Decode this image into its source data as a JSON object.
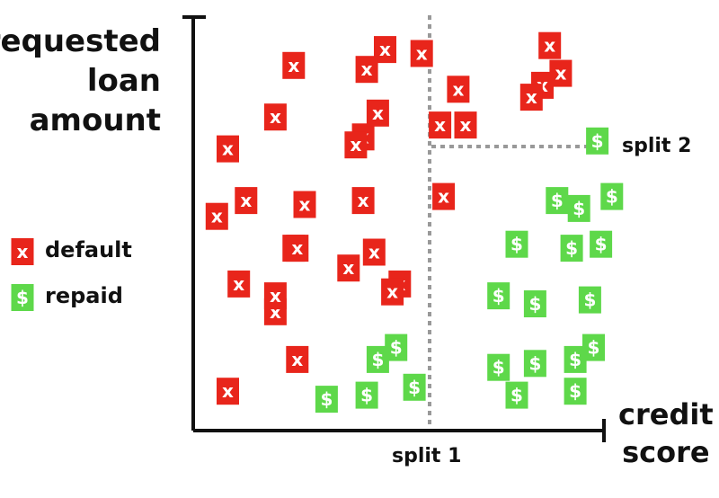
{
  "axes": {
    "y_label_lines": [
      "requested",
      "loan",
      "amount"
    ],
    "x_label_lines": [
      "credit",
      "score"
    ]
  },
  "splits": {
    "split1_label": "split 1",
    "split2_label": "split 2"
  },
  "legend": {
    "default_label": "default",
    "repaid_label": "repaid",
    "default_symbol": "x",
    "repaid_symbol": "$"
  },
  "colors": {
    "default": "#e8251b",
    "repaid": "#5ed84a",
    "axis": "#111111",
    "split_line": "#999999"
  },
  "chart_data": {
    "type": "scatter",
    "series": [
      {
        "name": "default",
        "points": [
          [
            25,
            91
          ],
          [
            50,
            95
          ],
          [
            95,
            96
          ],
          [
            98,
            89
          ],
          [
            93,
            86
          ],
          [
            90,
            83
          ],
          [
            70,
            85
          ],
          [
            45,
            90
          ],
          [
            60,
            94
          ],
          [
            44,
            73
          ],
          [
            42,
            71
          ],
          [
            48,
            79
          ],
          [
            72,
            76
          ],
          [
            7,
            70
          ],
          [
            20,
            78
          ],
          [
            65,
            76
          ],
          [
            12,
            57
          ],
          [
            28,
            56
          ],
          [
            44,
            57
          ],
          [
            66,
            58
          ],
          [
            4,
            53
          ],
          [
            25,
            45
          ],
          [
            26,
            45
          ],
          [
            40,
            40
          ],
          [
            47,
            44
          ],
          [
            54,
            36
          ],
          [
            20,
            29
          ],
          [
            10,
            36
          ],
          [
            20,
            33
          ],
          [
            52,
            34
          ],
          [
            26,
            17
          ],
          [
            7,
            9
          ]
        ]
      },
      {
        "name": "repaid",
        "points": [
          [
            108,
            72
          ],
          [
            97,
            57
          ],
          [
            103,
            55
          ],
          [
            112,
            58
          ],
          [
            109,
            46
          ],
          [
            86,
            46
          ],
          [
            101,
            45
          ],
          [
            81,
            33
          ],
          [
            91,
            31
          ],
          [
            106,
            32
          ],
          [
            48,
            17
          ],
          [
            53,
            20
          ],
          [
            81,
            15
          ],
          [
            107,
            20
          ],
          [
            91,
            16
          ],
          [
            102,
            17
          ],
          [
            34,
            7
          ],
          [
            45,
            8
          ],
          [
            58,
            10
          ],
          [
            86,
            8
          ],
          [
            102,
            9
          ]
        ]
      }
    ],
    "splits": [
      {
        "name": "split 1",
        "axis": "x"
      },
      {
        "name": "split 2",
        "axis": "y"
      }
    ]
  }
}
